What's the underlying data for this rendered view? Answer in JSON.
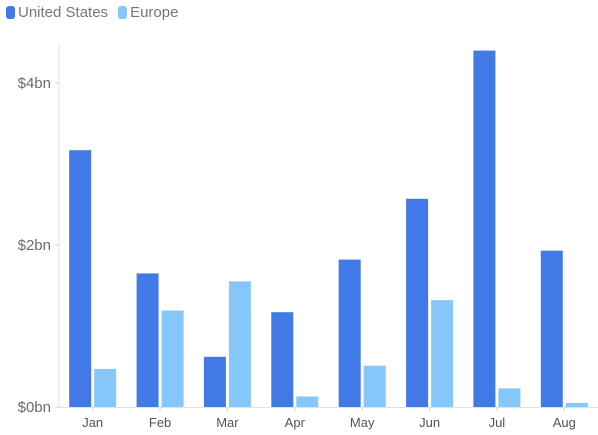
{
  "chart_data": {
    "type": "bar",
    "categories": [
      "Jan",
      "Feb",
      "Mar",
      "Apr",
      "May",
      "Jun",
      "Jul",
      "Aug"
    ],
    "series": [
      {
        "name": "United States",
        "color": "#4179e6",
        "values": [
          3.17,
          1.65,
          0.62,
          1.17,
          1.82,
          2.57,
          4.4,
          1.93
        ]
      },
      {
        "name": "Europe",
        "color": "#85c6fb",
        "values": [
          0.47,
          1.19,
          1.55,
          0.13,
          0.51,
          1.32,
          0.23,
          0.05
        ]
      }
    ],
    "yticks": [
      {
        "value": 0,
        "label": "$0bn"
      },
      {
        "value": 2,
        "label": "$2bn"
      },
      {
        "value": 4,
        "label": "$4bn"
      }
    ],
    "ylim": [
      0,
      4.5
    ],
    "grid": false,
    "legend_position": "top-left"
  }
}
